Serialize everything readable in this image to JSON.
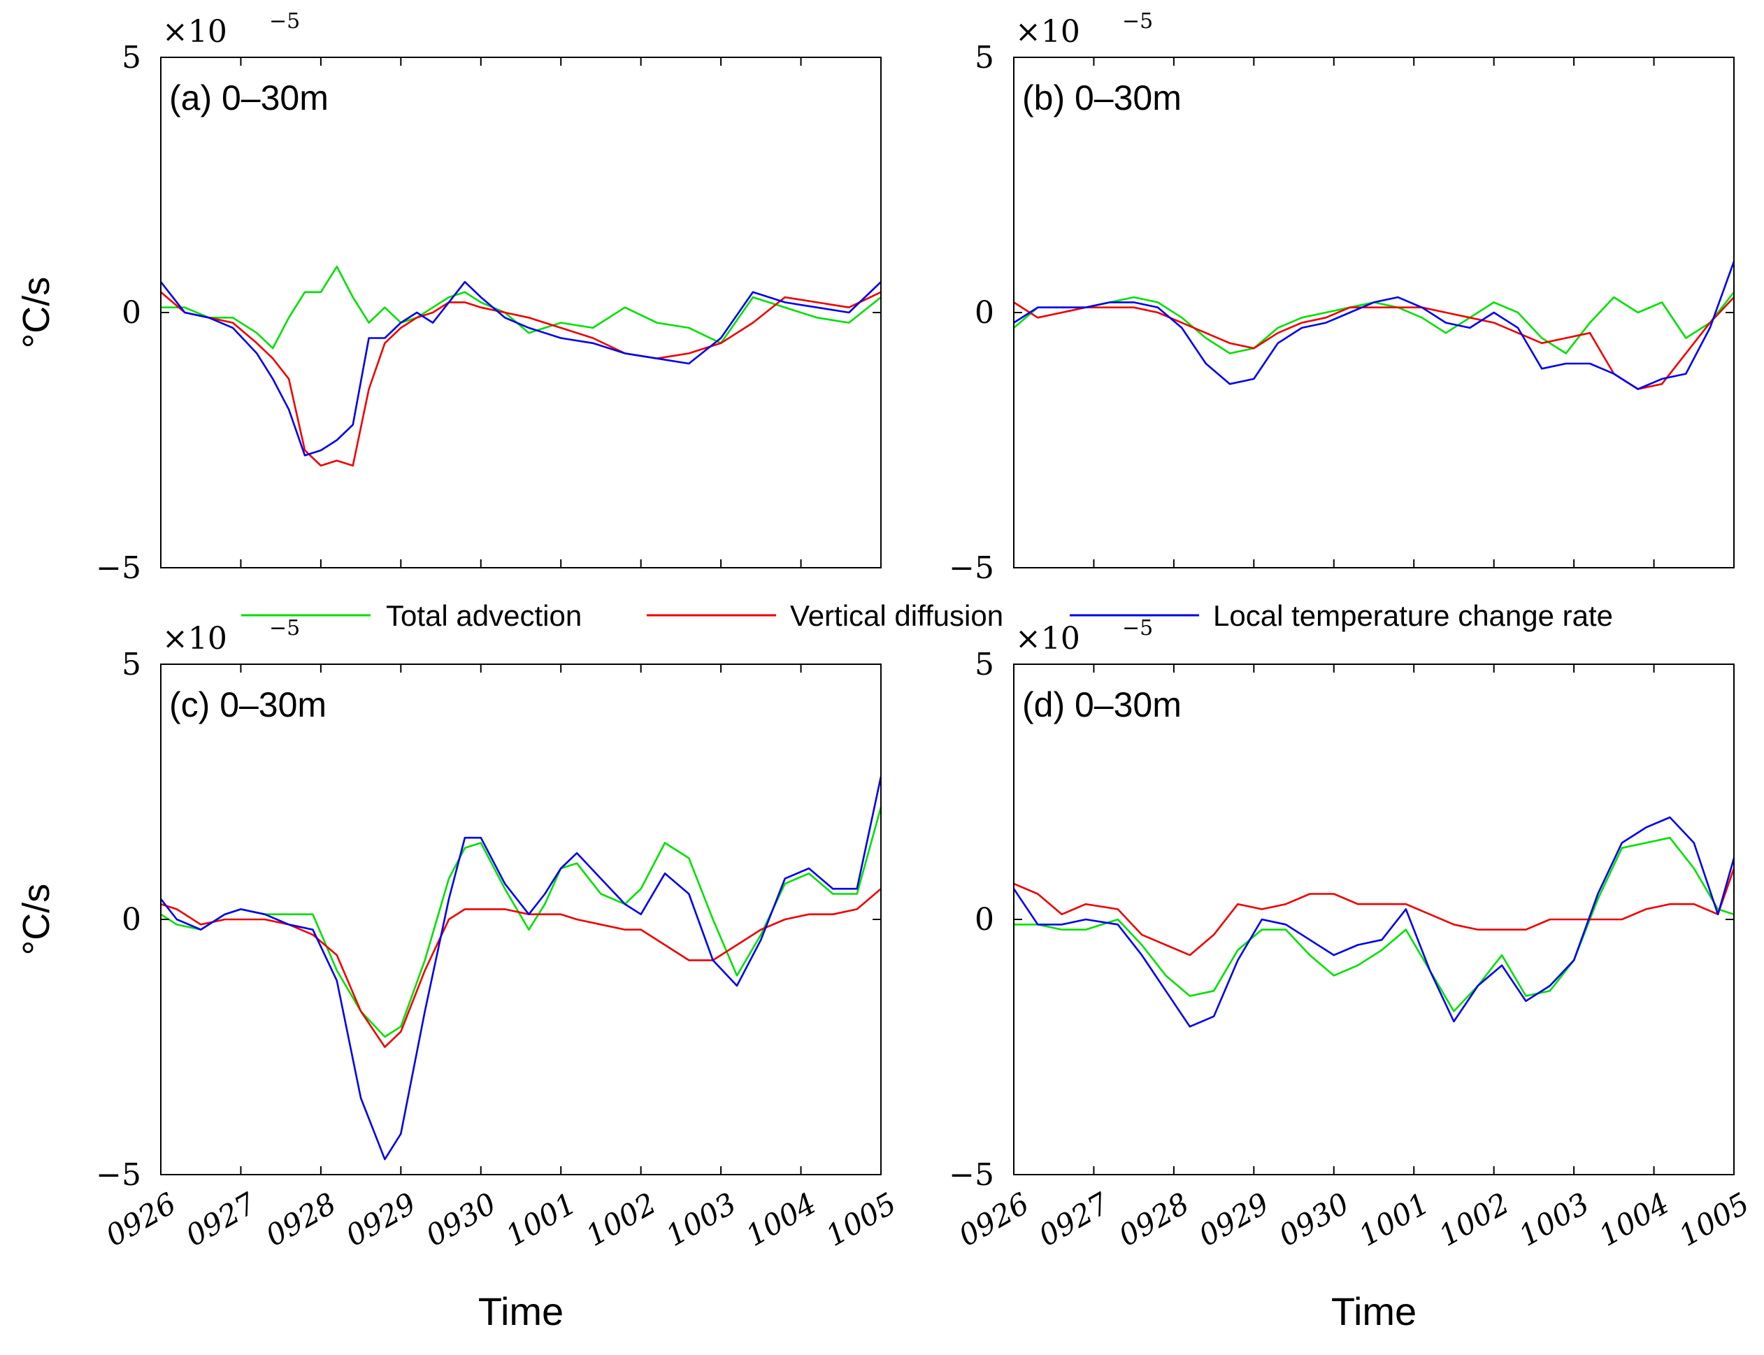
{
  "legend": {
    "items": [
      {
        "label": "Total advection",
        "color": "#00e000"
      },
      {
        "label": "Vertical diffusion",
        "color": "#ee0000"
      },
      {
        "label": "Local temperature change rate",
        "color": "#0000ee"
      }
    ]
  },
  "colors": {
    "green": "#00e000",
    "red": "#ee0000",
    "blue": "#0000ee"
  },
  "chart_data": [
    {
      "type": "line",
      "panel_label": "(a) 0–30m",
      "ylabel": "°C/s",
      "xlabel": "",
      "exponent_label": "×10",
      "exponent": "−5",
      "ylim": [
        -5,
        5
      ],
      "yticks": [
        "5",
        "0",
        "−5"
      ],
      "xlim": [
        0,
        9
      ],
      "xticks": [
        "0926",
        "0927",
        "0928",
        "0929",
        "0930",
        "1001",
        "1002",
        "1003",
        "1004",
        "1005"
      ],
      "series": [
        {
          "name": "Total advection",
          "x": [
            0,
            0.3,
            0.6,
            0.9,
            1.2,
            1.4,
            1.6,
            1.8,
            2.0,
            2.2,
            2.4,
            2.6,
            2.8,
            3.0,
            3.2,
            3.4,
            3.6,
            3.8,
            4.0,
            4.3,
            4.6,
            5.0,
            5.4,
            5.8,
            6.2,
            6.6,
            7.0,
            7.4,
            7.8,
            8.2,
            8.6,
            9.0
          ],
          "values": [
            0.1,
            0.1,
            -0.1,
            -0.1,
            -0.4,
            -0.7,
            -0.1,
            0.4,
            0.4,
            0.9,
            0.3,
            -0.2,
            0.1,
            -0.2,
            -0.1,
            0.1,
            0.3,
            0.4,
            0.2,
            0.0,
            -0.4,
            -0.2,
            -0.3,
            0.1,
            -0.2,
            -0.3,
            -0.6,
            0.3,
            0.1,
            -0.1,
            -0.2,
            0.3
          ]
        },
        {
          "name": "Vertical diffusion",
          "x": [
            0,
            0.3,
            0.6,
            0.9,
            1.2,
            1.4,
            1.6,
            1.8,
            2.0,
            2.2,
            2.4,
            2.6,
            2.8,
            3.0,
            3.2,
            3.4,
            3.6,
            3.8,
            4.0,
            4.3,
            4.6,
            5.0,
            5.4,
            5.8,
            6.2,
            6.6,
            7.0,
            7.4,
            7.8,
            8.2,
            8.6,
            9.0
          ],
          "values": [
            0.4,
            0.0,
            -0.1,
            -0.2,
            -0.6,
            -0.9,
            -1.3,
            -2.7,
            -3.0,
            -2.9,
            -3.0,
            -1.5,
            -0.6,
            -0.3,
            -0.1,
            0.0,
            0.2,
            0.2,
            0.1,
            0.0,
            -0.1,
            -0.3,
            -0.5,
            -0.8,
            -0.9,
            -0.8,
            -0.6,
            -0.2,
            0.3,
            0.2,
            0.1,
            0.4
          ]
        },
        {
          "name": "Local temperature change rate",
          "x": [
            0,
            0.3,
            0.6,
            0.9,
            1.2,
            1.4,
            1.6,
            1.8,
            2.0,
            2.2,
            2.4,
            2.6,
            2.8,
            3.0,
            3.2,
            3.4,
            3.6,
            3.8,
            4.0,
            4.3,
            4.6,
            5.0,
            5.4,
            5.8,
            6.2,
            6.6,
            7.0,
            7.4,
            7.8,
            8.2,
            8.6,
            9.0
          ],
          "values": [
            0.6,
            0.0,
            -0.1,
            -0.3,
            -0.8,
            -1.3,
            -1.9,
            -2.8,
            -2.7,
            -2.5,
            -2.2,
            -0.5,
            -0.5,
            -0.2,
            0.0,
            -0.2,
            0.2,
            0.6,
            0.3,
            -0.1,
            -0.3,
            -0.5,
            -0.6,
            -0.8,
            -0.9,
            -1.0,
            -0.5,
            0.4,
            0.2,
            0.1,
            0.0,
            0.6
          ]
        }
      ]
    },
    {
      "type": "line",
      "panel_label": "(b) 0–30m",
      "ylabel": "",
      "xlabel": "",
      "exponent_label": "×10",
      "exponent": "−5",
      "ylim": [
        -5,
        5
      ],
      "yticks": [
        "5",
        "0",
        "−5"
      ],
      "xlim": [
        0,
        9
      ],
      "xticks": [
        "0926",
        "0927",
        "0928",
        "0929",
        "0930",
        "1001",
        "1002",
        "1003",
        "1004",
        "1005"
      ],
      "series": [
        {
          "name": "Total advection",
          "x": [
            0,
            0.3,
            0.6,
            0.9,
            1.2,
            1.5,
            1.8,
            2.1,
            2.4,
            2.7,
            3.0,
            3.3,
            3.6,
            3.9,
            4.2,
            4.5,
            4.8,
            5.1,
            5.4,
            5.7,
            6.0,
            6.3,
            6.6,
            6.9,
            7.2,
            7.5,
            7.8,
            8.1,
            8.4,
            8.7,
            9.0
          ],
          "values": [
            -0.3,
            0.1,
            0.1,
            0.1,
            0.2,
            0.3,
            0.2,
            -0.1,
            -0.5,
            -0.8,
            -0.7,
            -0.3,
            -0.1,
            0.0,
            0.1,
            0.2,
            0.1,
            -0.1,
            -0.4,
            -0.1,
            0.2,
            0.0,
            -0.5,
            -0.8,
            -0.2,
            0.3,
            0.0,
            0.2,
            -0.5,
            -0.2,
            0.4
          ]
        },
        {
          "name": "Vertical diffusion",
          "x": [
            0,
            0.3,
            0.6,
            0.9,
            1.2,
            1.5,
            1.8,
            2.1,
            2.4,
            2.7,
            3.0,
            3.3,
            3.6,
            3.9,
            4.2,
            4.5,
            4.8,
            5.1,
            5.4,
            5.7,
            6.0,
            6.3,
            6.6,
            6.9,
            7.2,
            7.5,
            7.8,
            8.1,
            8.4,
            8.7,
            9.0
          ],
          "values": [
            0.2,
            -0.1,
            0.0,
            0.1,
            0.1,
            0.1,
            0.0,
            -0.2,
            -0.4,
            -0.6,
            -0.7,
            -0.4,
            -0.2,
            -0.1,
            0.1,
            0.1,
            0.1,
            0.1,
            0.0,
            -0.1,
            -0.2,
            -0.4,
            -0.6,
            -0.5,
            -0.4,
            -1.2,
            -1.5,
            -1.4,
            -0.8,
            -0.2,
            0.3
          ]
        },
        {
          "name": "Local temperature change rate",
          "x": [
            0,
            0.3,
            0.6,
            0.9,
            1.2,
            1.5,
            1.8,
            2.1,
            2.4,
            2.7,
            3.0,
            3.3,
            3.6,
            3.9,
            4.2,
            4.5,
            4.8,
            5.1,
            5.4,
            5.7,
            6.0,
            6.3,
            6.6,
            6.9,
            7.2,
            7.5,
            7.8,
            8.1,
            8.4,
            8.7,
            9.0
          ],
          "values": [
            -0.2,
            0.1,
            0.1,
            0.1,
            0.2,
            0.2,
            0.1,
            -0.3,
            -1.0,
            -1.4,
            -1.3,
            -0.6,
            -0.3,
            -0.2,
            0.0,
            0.2,
            0.3,
            0.1,
            -0.2,
            -0.3,
            0.0,
            -0.3,
            -1.1,
            -1.0,
            -1.0,
            -1.2,
            -1.5,
            -1.3,
            -1.2,
            -0.3,
            1.0
          ]
        }
      ]
    },
    {
      "type": "line",
      "panel_label": "(c) 0–30m",
      "ylabel": "°C/s",
      "xlabel": "Time",
      "exponent_label": "×10",
      "exponent": "−5",
      "ylim": [
        -5,
        5
      ],
      "yticks": [
        "5",
        "0",
        "−5"
      ],
      "xlim": [
        0,
        9
      ],
      "xticks": [
        "0926",
        "0927",
        "0928",
        "0929",
        "0930",
        "1001",
        "1002",
        "1003",
        "1004",
        "1005"
      ],
      "series": [
        {
          "name": "Total advection",
          "x": [
            0,
            0.2,
            0.5,
            0.8,
            1.0,
            1.3,
            1.6,
            1.9,
            2.2,
            2.5,
            2.8,
            3.0,
            3.3,
            3.6,
            3.8,
            4.0,
            4.3,
            4.6,
            4.8,
            5.0,
            5.2,
            5.5,
            5.8,
            6.0,
            6.3,
            6.6,
            6.9,
            7.2,
            7.5,
            7.8,
            8.1,
            8.4,
            8.7,
            9.0
          ],
          "values": [
            0.1,
            -0.1,
            -0.2,
            0.1,
            0.2,
            0.1,
            0.1,
            0.1,
            -1.0,
            -1.8,
            -2.3,
            -2.1,
            -0.8,
            0.8,
            1.4,
            1.5,
            0.6,
            -0.2,
            0.3,
            1.0,
            1.1,
            0.5,
            0.3,
            0.6,
            1.5,
            1.2,
            0.0,
            -1.1,
            -0.3,
            0.7,
            0.9,
            0.5,
            0.5,
            2.2
          ]
        },
        {
          "name": "Vertical diffusion",
          "x": [
            0,
            0.2,
            0.5,
            0.8,
            1.0,
            1.3,
            1.6,
            1.9,
            2.2,
            2.5,
            2.8,
            3.0,
            3.3,
            3.6,
            3.8,
            4.0,
            4.3,
            4.6,
            4.8,
            5.0,
            5.2,
            5.5,
            5.8,
            6.0,
            6.3,
            6.6,
            6.9,
            7.2,
            7.5,
            7.8,
            8.1,
            8.4,
            8.7,
            9.0
          ],
          "values": [
            0.3,
            0.2,
            -0.1,
            0.0,
            0.0,
            0.0,
            -0.1,
            -0.3,
            -0.7,
            -1.8,
            -2.5,
            -2.2,
            -1.0,
            0.0,
            0.2,
            0.2,
            0.2,
            0.1,
            0.1,
            0.1,
            0.0,
            -0.1,
            -0.2,
            -0.2,
            -0.5,
            -0.8,
            -0.8,
            -0.5,
            -0.2,
            0.0,
            0.1,
            0.1,
            0.2,
            0.6
          ]
        },
        {
          "name": "Local temperature change rate",
          "x": [
            0,
            0.2,
            0.5,
            0.8,
            1.0,
            1.3,
            1.6,
            1.9,
            2.2,
            2.5,
            2.8,
            3.0,
            3.3,
            3.6,
            3.8,
            4.0,
            4.3,
            4.6,
            4.8,
            5.0,
            5.2,
            5.5,
            5.8,
            6.0,
            6.3,
            6.6,
            6.9,
            7.2,
            7.5,
            7.8,
            8.1,
            8.4,
            8.7,
            9.0
          ],
          "values": [
            0.4,
            0.0,
            -0.2,
            0.1,
            0.2,
            0.1,
            -0.1,
            -0.2,
            -1.2,
            -3.5,
            -4.7,
            -4.2,
            -1.8,
            0.4,
            1.6,
            1.6,
            0.7,
            0.1,
            0.5,
            1.0,
            1.3,
            0.8,
            0.3,
            0.1,
            0.9,
            0.5,
            -0.8,
            -1.3,
            -0.4,
            0.8,
            1.0,
            0.6,
            0.6,
            2.8
          ]
        }
      ]
    },
    {
      "type": "line",
      "panel_label": "(d) 0–30m",
      "ylabel": "",
      "xlabel": "Time",
      "exponent_label": "×10",
      "exponent": "−5",
      "ylim": [
        -5,
        5
      ],
      "yticks": [
        "5",
        "0",
        "−5"
      ],
      "xlim": [
        0,
        9
      ],
      "xticks": [
        "0926",
        "0927",
        "0928",
        "0929",
        "0930",
        "1001",
        "1002",
        "1003",
        "1004",
        "1005"
      ],
      "series": [
        {
          "name": "Total advection",
          "x": [
            0,
            0.3,
            0.6,
            0.9,
            1.3,
            1.6,
            1.9,
            2.2,
            2.5,
            2.8,
            3.1,
            3.4,
            3.7,
            4.0,
            4.3,
            4.6,
            4.9,
            5.2,
            5.5,
            5.8,
            6.1,
            6.4,
            6.7,
            7.0,
            7.3,
            7.6,
            7.9,
            8.2,
            8.5,
            8.8,
            9.0
          ],
          "values": [
            -0.1,
            -0.1,
            -0.2,
            -0.2,
            0.0,
            -0.5,
            -1.1,
            -1.5,
            -1.4,
            -0.6,
            -0.2,
            -0.2,
            -0.7,
            -1.1,
            -0.9,
            -0.6,
            -0.2,
            -1.0,
            -1.8,
            -1.3,
            -0.7,
            -1.5,
            -1.4,
            -0.8,
            0.4,
            1.4,
            1.5,
            1.6,
            1.0,
            0.2,
            0.1
          ]
        },
        {
          "name": "Vertical diffusion",
          "x": [
            0,
            0.3,
            0.6,
            0.9,
            1.3,
            1.6,
            1.9,
            2.2,
            2.5,
            2.8,
            3.1,
            3.4,
            3.7,
            4.0,
            4.3,
            4.6,
            4.9,
            5.2,
            5.5,
            5.8,
            6.1,
            6.4,
            6.7,
            7.0,
            7.3,
            7.6,
            7.9,
            8.2,
            8.5,
            8.8,
            9.0
          ],
          "values": [
            0.7,
            0.5,
            0.1,
            0.3,
            0.2,
            -0.3,
            -0.5,
            -0.7,
            -0.3,
            0.3,
            0.2,
            0.3,
            0.5,
            0.5,
            0.3,
            0.3,
            0.3,
            0.1,
            -0.1,
            -0.2,
            -0.2,
            -0.2,
            0.0,
            0.0,
            0.0,
            0.0,
            0.2,
            0.3,
            0.3,
            0.1,
            1.0
          ]
        },
        {
          "name": "Local temperature change rate",
          "x": [
            0,
            0.3,
            0.6,
            0.9,
            1.3,
            1.6,
            1.9,
            2.2,
            2.5,
            2.8,
            3.1,
            3.4,
            3.7,
            4.0,
            4.3,
            4.6,
            4.9,
            5.2,
            5.5,
            5.8,
            6.1,
            6.4,
            6.7,
            7.0,
            7.3,
            7.6,
            7.9,
            8.2,
            8.5,
            8.8,
            9.0
          ],
          "values": [
            0.6,
            -0.1,
            -0.1,
            0.0,
            -0.1,
            -0.7,
            -1.4,
            -2.1,
            -1.9,
            -0.8,
            0.0,
            -0.1,
            -0.4,
            -0.7,
            -0.5,
            -0.4,
            0.2,
            -1.0,
            -2.0,
            -1.3,
            -0.9,
            -1.6,
            -1.3,
            -0.8,
            0.5,
            1.5,
            1.8,
            2.0,
            1.5,
            0.1,
            1.2
          ]
        }
      ]
    }
  ]
}
